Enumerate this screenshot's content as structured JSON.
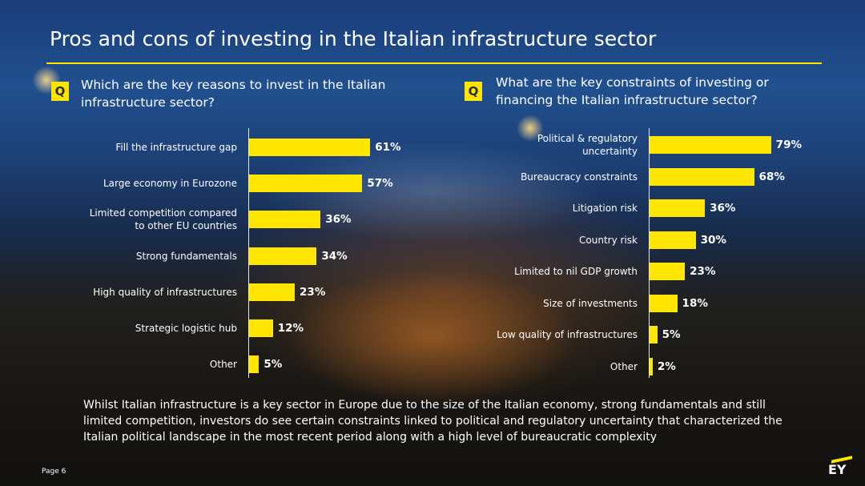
{
  "title": "Pros and cons of investing in the Italian infrastructure sector",
  "q_badge": "Q",
  "left_question": "Which are the key reasons to invest in the Italian infrastructure sector?",
  "right_question": "What are the key constraints of investing or financing the Italian infrastructure sector?",
  "summary": "Whilst Italian infrastructure is a key sector in Europe due to the size of the Italian economy, strong fundamentals and still limited competition, investors do see certain constraints linked to political and regulatory uncertainty that characterized the Italian political landscape in the most recent period along with a high level of bureaucratic complexity",
  "page_label": "Page 6",
  "logo_text": "EY",
  "colors": {
    "accent": "#ffe600",
    "text": "#ffffff"
  },
  "chart_data": [
    {
      "type": "bar",
      "orientation": "horizontal",
      "categories": [
        "Fill the infrastructure gap",
        "Large economy in Eurozone",
        "Limited competition compared to other EU countries",
        "Strong fundamentals",
        "High quality of infrastructures",
        "Strategic logistic hub",
        "Other"
      ],
      "values": [
        61,
        57,
        36,
        34,
        23,
        12,
        5
      ],
      "value_labels": [
        "61%",
        "57%",
        "36%",
        "34%",
        "23%",
        "12%",
        "5%"
      ]
    },
    {
      "type": "bar",
      "orientation": "horizontal",
      "categories": [
        "Political & regulatory uncertainty",
        "Bureaucracy constraints",
        "Litigation risk",
        "Country risk",
        "Limited to nil GDP growth",
        "Size of investments",
        "Low quality of infrastructures",
        "Other"
      ],
      "values": [
        79,
        68,
        36,
        30,
        23,
        18,
        5,
        2
      ],
      "value_labels": [
        "79%",
        "68%",
        "36%",
        "30%",
        "23%",
        "18%",
        "5%",
        "2%"
      ]
    }
  ]
}
